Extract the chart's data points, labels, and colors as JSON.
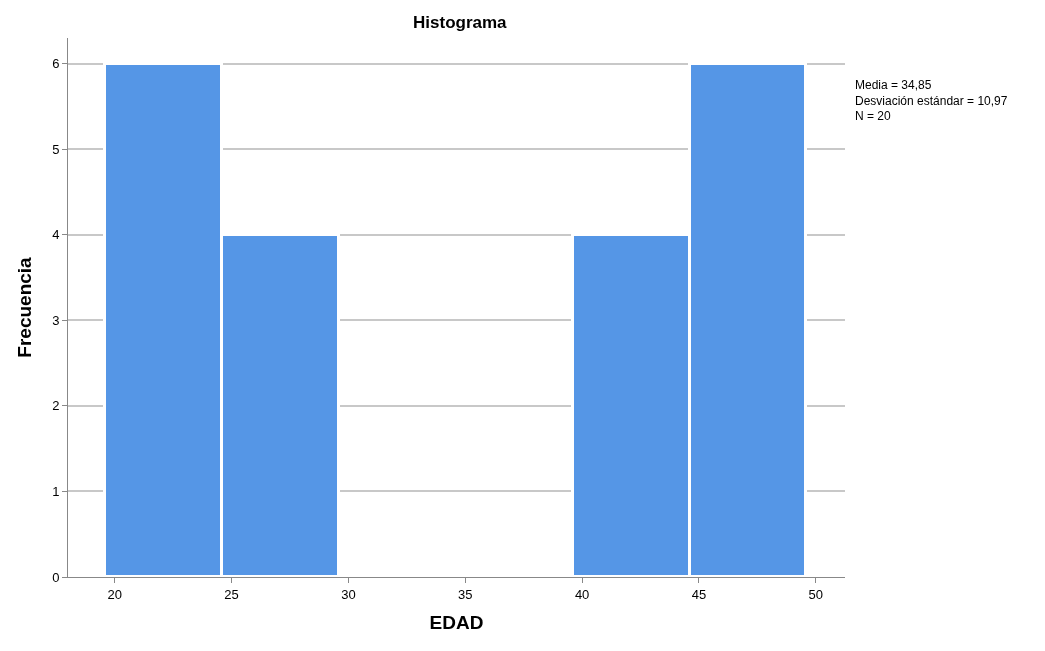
{
  "chart_data": {
    "type": "histogram",
    "title": "Histograma",
    "xlabel": "EDAD",
    "ylabel": "Frecuencia",
    "bins": [
      19.6,
      24.6,
      29.6,
      34.6,
      39.6,
      44.6,
      49.6
    ],
    "values": [
      6,
      4,
      0,
      0,
      4,
      6
    ],
    "color": "#5596e6",
    "xlim": [
      18,
      51.25
    ],
    "xticks": [
      20,
      25,
      30,
      35,
      40,
      45,
      50
    ],
    "ylim": [
      0,
      6.3
    ],
    "yticks": [
      0,
      1,
      2,
      3,
      4,
      5,
      6
    ],
    "grid": "y",
    "annotations": [
      "Media = 34,85\nDesviación estándar = 10,97\nN = 20"
    ]
  }
}
